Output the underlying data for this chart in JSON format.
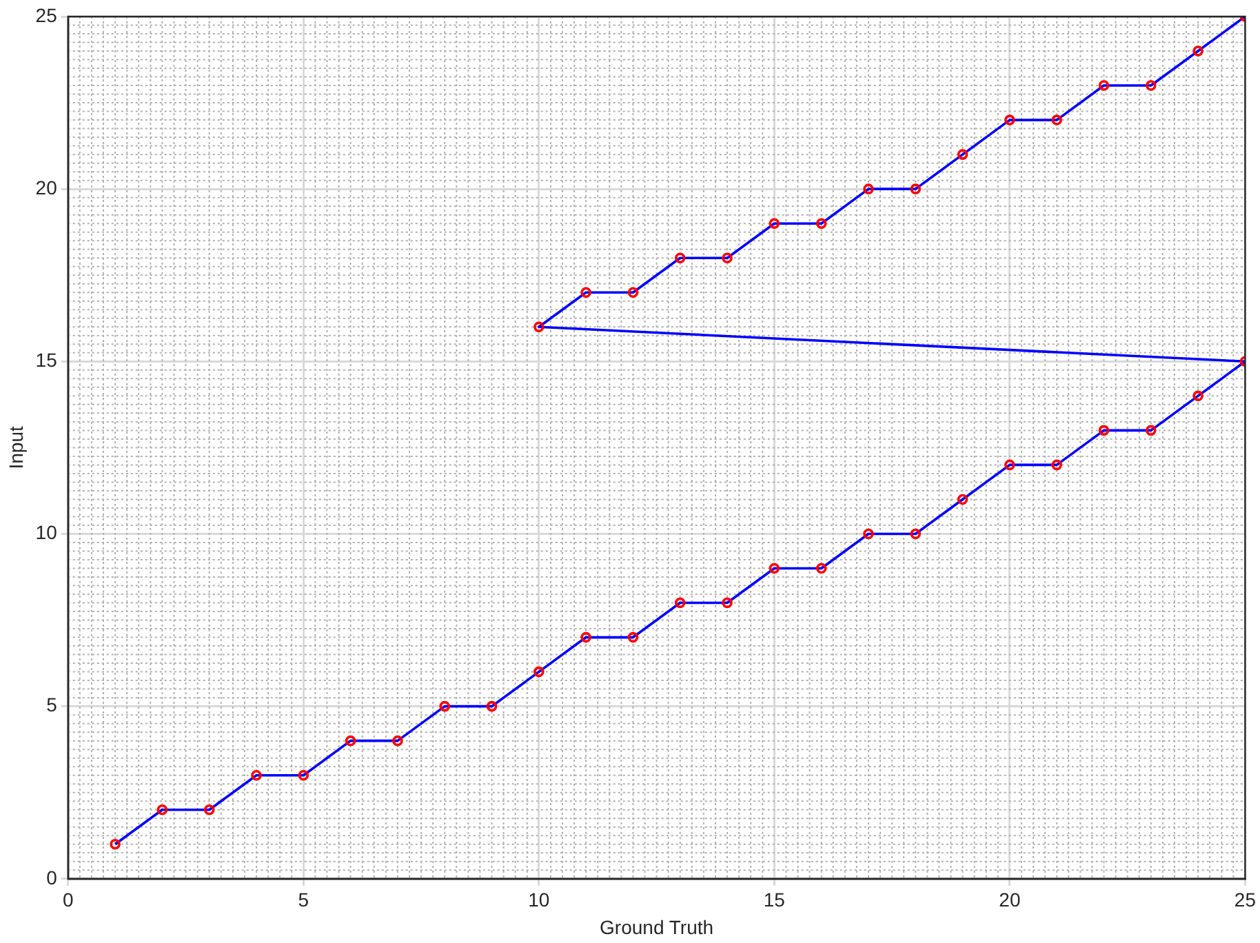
{
  "chart_data": {
    "type": "line",
    "xlabel": "Ground Truth",
    "ylabel": "Input",
    "xlim": [
      0,
      25
    ],
    "ylim": [
      0,
      25
    ],
    "xticks": [
      0,
      5,
      10,
      15,
      20,
      25
    ],
    "yticks": [
      0,
      5,
      10,
      15,
      20,
      25
    ],
    "grid": true,
    "legend": false,
    "series": [
      {
        "type": "line",
        "color": "#0000ff",
        "marker": "none",
        "x": [
          1,
          2,
          3,
          4,
          5,
          6,
          7,
          8,
          9,
          10,
          11,
          12,
          13,
          14,
          15,
          16,
          17,
          18,
          19,
          20,
          21,
          22,
          23,
          24,
          25,
          10,
          11,
          12,
          13,
          14,
          15,
          16,
          17,
          18,
          19,
          20,
          21,
          22,
          23,
          24,
          25
        ],
        "values": [
          1,
          2,
          2,
          3,
          3,
          4,
          4,
          5,
          5,
          6,
          7,
          7,
          8,
          8,
          9,
          9,
          10,
          10,
          11,
          12,
          12,
          13,
          13,
          14,
          15,
          16,
          17,
          17,
          18,
          18,
          19,
          19,
          20,
          20,
          21,
          22,
          22,
          23,
          23,
          24,
          25
        ]
      },
      {
        "type": "scatter",
        "color": "#ff0000",
        "marker": "circle",
        "x": [
          1,
          2,
          3,
          4,
          5,
          6,
          7,
          8,
          9,
          10,
          11,
          12,
          13,
          14,
          15,
          16,
          17,
          18,
          19,
          20,
          21,
          22,
          23,
          24,
          25,
          10,
          11,
          12,
          13,
          14,
          15,
          16,
          17,
          18,
          19,
          20,
          21,
          22,
          23,
          24,
          25
        ],
        "values": [
          1,
          2,
          2,
          3,
          3,
          4,
          4,
          5,
          5,
          6,
          7,
          7,
          8,
          8,
          9,
          9,
          10,
          10,
          11,
          12,
          12,
          13,
          13,
          14,
          15,
          16,
          17,
          17,
          18,
          18,
          19,
          19,
          20,
          20,
          21,
          22,
          22,
          23,
          23,
          24,
          25
        ]
      }
    ]
  }
}
